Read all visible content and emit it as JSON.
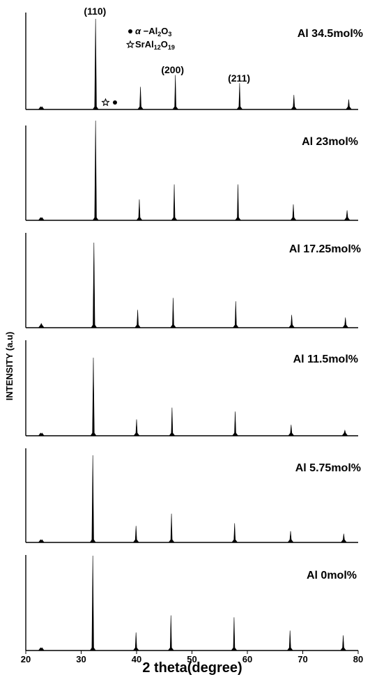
{
  "chart_data": {
    "type": "line",
    "xlabel": "2 theta(degree)",
    "ylabel": "INTENSITY (a.u)",
    "xlim": [
      20,
      80
    ],
    "x_ticks": [
      "20",
      "30",
      "40",
      "50",
      "60",
      "70",
      "80"
    ],
    "grid": false,
    "peak_labels": [
      {
        "text": "(110)",
        "x": 32.5
      },
      {
        "text": "(200)",
        "x": 46.5
      },
      {
        "text": "(211)",
        "x": 58.5
      }
    ],
    "legend": [
      {
        "symbol": "dot",
        "parts": [
          "α",
          " −Al",
          "2",
          "O",
          "3"
        ]
      },
      {
        "symbol": "star",
        "parts": [
          "SrAl",
          "12",
          "O",
          "19"
        ]
      }
    ],
    "legend_markers": [
      {
        "symbol": "star",
        "x": 34.4
      },
      {
        "symbol": "dot",
        "x": 36.1
      }
    ],
    "panels": [
      {
        "label": "Al 34.5mol%",
        "peaks": [
          [
            22.8,
            0.02
          ],
          [
            32.6,
            1.0
          ],
          [
            40.7,
            0.25
          ],
          [
            47.0,
            0.38
          ],
          [
            58.6,
            0.29
          ],
          [
            68.4,
            0.16
          ],
          [
            78.3,
            0.11
          ]
        ]
      },
      {
        "label": "Al 23mol%",
        "peaks": [
          [
            22.8,
            0.02
          ],
          [
            32.6,
            1.0
          ],
          [
            40.5,
            0.21
          ],
          [
            46.8,
            0.36
          ],
          [
            58.3,
            0.36
          ],
          [
            68.3,
            0.16
          ],
          [
            78.0,
            0.1
          ]
        ]
      },
      {
        "label": "Al 17.25mol%",
        "peaks": [
          [
            22.8,
            0.05
          ],
          [
            32.3,
            1.0
          ],
          [
            40.2,
            0.21
          ],
          [
            46.6,
            0.35
          ],
          [
            57.9,
            0.31
          ],
          [
            68.0,
            0.15
          ],
          [
            77.7,
            0.12
          ]
        ]
      },
      {
        "label": "Al 11.5mol%",
        "peaks": [
          [
            22.8,
            0.02
          ],
          [
            32.2,
            1.0
          ],
          [
            40.0,
            0.21
          ],
          [
            46.4,
            0.36
          ],
          [
            57.8,
            0.31
          ],
          [
            67.9,
            0.14
          ],
          [
            77.6,
            0.07
          ]
        ]
      },
      {
        "label": "Al 5.75mol%",
        "peaks": [
          [
            22.8,
            0.02
          ],
          [
            32.1,
            1.0
          ],
          [
            39.9,
            0.19
          ],
          [
            46.3,
            0.33
          ],
          [
            57.7,
            0.22
          ],
          [
            67.8,
            0.13
          ],
          [
            77.4,
            0.1
          ]
        ]
      },
      {
        "label": "Al 0mol%",
        "peaks": [
          [
            22.8,
            0.02
          ],
          [
            32.1,
            1.0
          ],
          [
            39.9,
            0.19
          ],
          [
            46.2,
            0.37
          ],
          [
            57.6,
            0.35
          ],
          [
            67.7,
            0.21
          ],
          [
            77.3,
            0.16
          ]
        ]
      }
    ]
  }
}
